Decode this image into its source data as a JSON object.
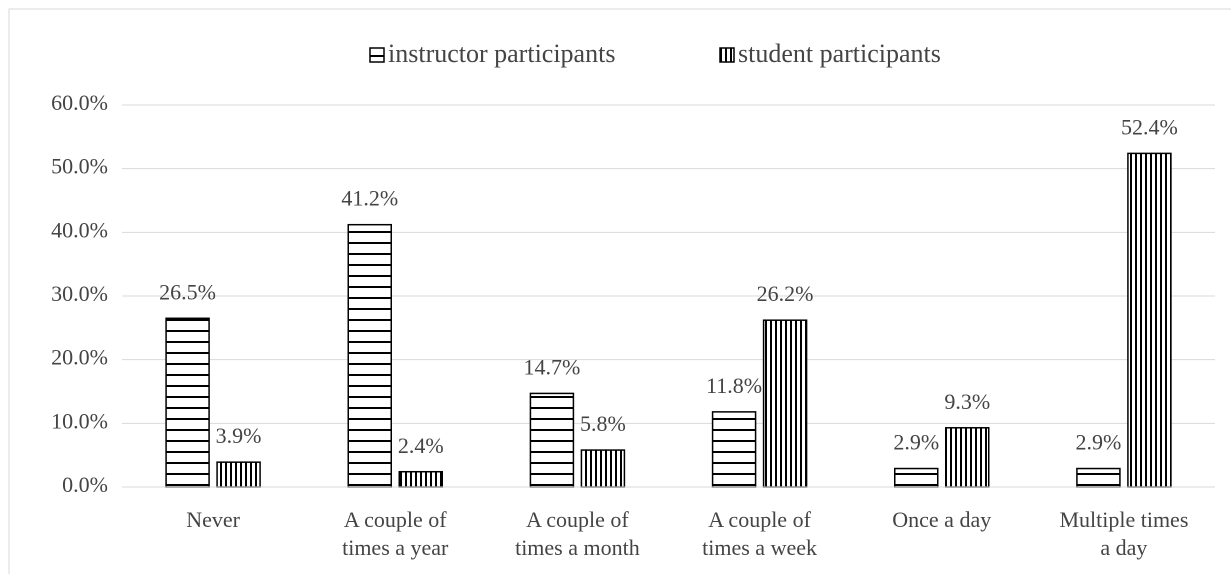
{
  "chart_data": {
    "type": "bar",
    "categories": [
      "Never",
      "A couple of\ntimes a year",
      "A couple of\ntimes a month",
      "A couple of\ntimes a week",
      "Once a day",
      "Multiple times\na day"
    ],
    "series": [
      {
        "name": "instructor participants",
        "color": "#000000",
        "pattern": "horizontal",
        "values": [
          26.5,
          41.2,
          14.7,
          11.8,
          2.9,
          2.9
        ],
        "value_labels": [
          "26.5%",
          "41.2%",
          "14.7%",
          "11.8%",
          "2.9%",
          "2.9%"
        ]
      },
      {
        "name": "student participants",
        "color": "#000000",
        "pattern": "vertical",
        "values": [
          3.9,
          2.4,
          5.8,
          26.2,
          9.3,
          52.4
        ],
        "value_labels": [
          "3.9%",
          "2.4%",
          "5.8%",
          "26.2%",
          "9.3%",
          "52.4%"
        ]
      }
    ],
    "ylim": [
      0,
      60
    ],
    "yticks": [
      {
        "value": 0,
        "label": "0.0%"
      },
      {
        "value": 10,
        "label": "10.0%"
      },
      {
        "value": 20,
        "label": "20.0%"
      },
      {
        "value": 30,
        "label": "30.0%"
      },
      {
        "value": 40,
        "label": "40.0%"
      },
      {
        "value": 50,
        "label": "50.0%"
      },
      {
        "value": 60,
        "label": "60.0%"
      }
    ],
    "grid": true,
    "legend": "top"
  }
}
